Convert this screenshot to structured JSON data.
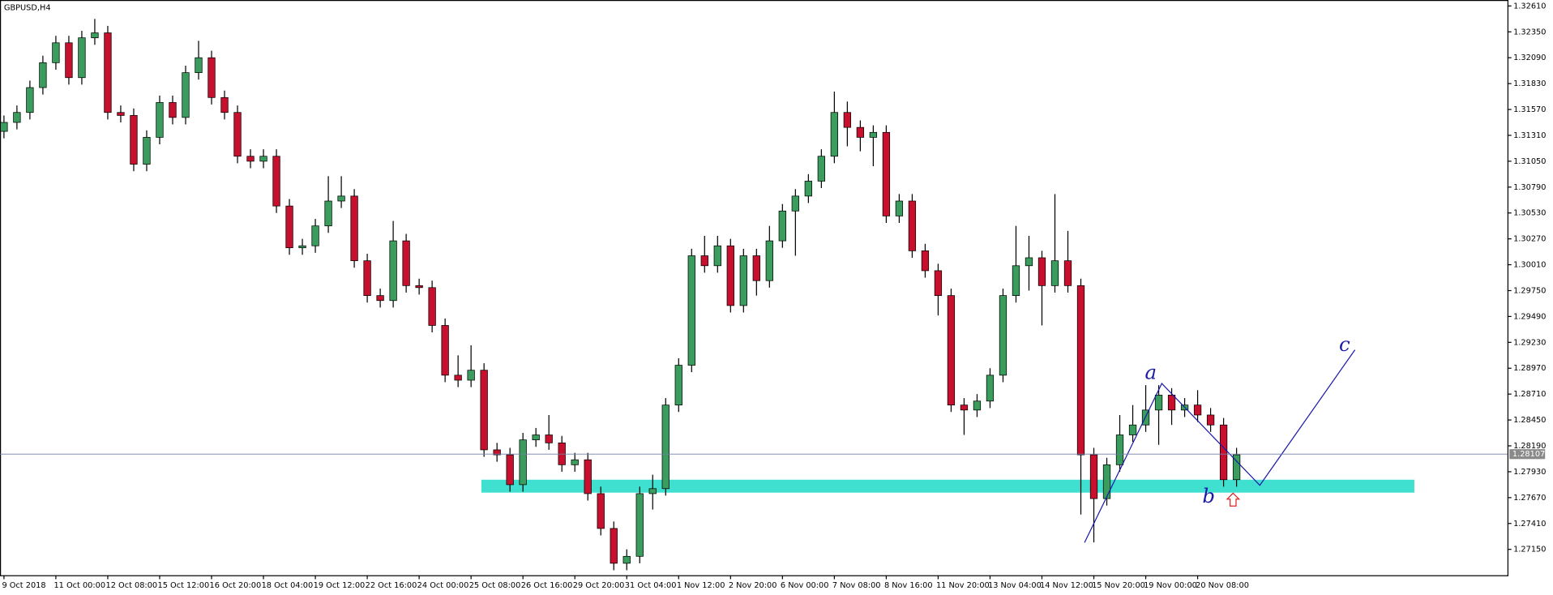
{
  "chart_data": {
    "type": "candlestick",
    "title": "GBPUSD,H4",
    "up_color": "#3a9d5d",
    "down_color": "#c8102e",
    "categories": [
      "9 Oct 2018",
      null,
      null,
      null,
      "11 Oct 00:00",
      null,
      null,
      null,
      "12 Oct 08:00",
      null,
      null,
      null,
      "15 Oct 12:00",
      null,
      null,
      null,
      "16 Oct 20:00",
      null,
      null,
      null,
      "18 Oct 04:00",
      null,
      null,
      null,
      "19 Oct 12:00",
      null,
      null,
      null,
      "22 Oct 16:00",
      null,
      null,
      null,
      "24 Oct 00:00",
      null,
      null,
      null,
      "25 Oct 08:00",
      null,
      null,
      null,
      "26 Oct 16:00",
      null,
      null,
      null,
      "29 Oct 20:00",
      null,
      null,
      null,
      "31 Oct 04:00",
      null,
      null,
      null,
      "1 Nov 12:00",
      null,
      null,
      null,
      "2 Nov 20:00",
      null,
      null,
      null,
      "6 Nov 00:00",
      null,
      null,
      null,
      "7 Nov 08:00",
      null,
      null,
      null,
      "8 Nov 16:00",
      null,
      null,
      null,
      "11 Nov 20:00",
      null,
      null,
      null,
      "13 Nov 04:00",
      null,
      null,
      null,
      "14 Nov 12:00",
      null,
      null,
      null,
      "15 Nov 20:00",
      null,
      null,
      null,
      "19 Nov 00:00",
      null,
      null,
      null,
      "20 Nov 08:00",
      null,
      null,
      null
    ],
    "open": [
      1.3135,
      1.3144,
      1.3154,
      1.3179,
      1.3204,
      1.3224,
      1.3189,
      1.3229,
      1.3234,
      1.3154,
      1.3151,
      1.3102,
      1.3129,
      1.3164,
      1.3149,
      1.3194,
      1.3209,
      1.3169,
      1.3154,
      1.311,
      1.3105,
      1.311,
      1.306,
      1.3018,
      1.302,
      1.304,
      1.3065,
      1.307,
      1.3005,
      1.297,
      1.2965,
      1.3025,
      1.298,
      1.2978,
      1.294,
      1.289,
      1.2885,
      1.2895,
      1.2815,
      1.281,
      1.278,
      1.2825,
      1.283,
      1.2822,
      1.28,
      1.2805,
      1.2771,
      1.2736,
      1.2701,
      1.2708,
      1.2771,
      1.2776,
      1.286,
      1.29,
      1.301,
      1.3,
      1.302,
      1.296,
      1.301,
      1.2985,
      1.3025,
      1.3055,
      1.307,
      1.3085,
      1.311,
      1.3154,
      1.3139,
      1.3129,
      1.3134,
      1.305,
      1.3065,
      1.3015,
      1.2995,
      1.297,
      1.286,
      1.2855,
      1.2864,
      1.289,
      1.297,
      1.3,
      1.3008,
      1.298,
      1.3005,
      1.298,
      1.281,
      1.2766,
      1.28,
      1.283,
      1.284,
      1.2855,
      1.287,
      1.2855,
      1.286,
      1.285,
      1.284,
      1.2785
    ],
    "high": [
      1.3151,
      1.3161,
      1.3186,
      1.3211,
      1.3231,
      1.3231,
      1.3236,
      1.3248,
      1.3241,
      1.3161,
      1.3158,
      1.3136,
      1.3171,
      1.3171,
      1.3201,
      1.3226,
      1.3216,
      1.3176,
      1.3161,
      1.3117,
      1.3117,
      1.3117,
      1.3067,
      1.3027,
      1.3047,
      1.309,
      1.309,
      1.3077,
      1.3012,
      1.2977,
      1.3045,
      1.3032,
      1.2987,
      1.2985,
      1.2947,
      1.291,
      1.292,
      1.2902,
      1.2822,
      1.2817,
      1.2832,
      1.2837,
      1.285,
      1.2829,
      1.2812,
      1.2812,
      1.2778,
      1.2743,
      1.2715,
      1.2778,
      1.279,
      1.2867,
      1.2907,
      1.3017,
      1.303,
      1.303,
      1.3027,
      1.3017,
      1.3017,
      1.304,
      1.3062,
      1.3077,
      1.3092,
      1.3117,
      1.3175,
      1.3165,
      1.3146,
      1.3141,
      1.3141,
      1.3072,
      1.3072,
      1.3022,
      1.3002,
      1.2977,
      1.2867,
      1.2871,
      1.2897,
      1.2977,
      1.304,
      1.303,
      1.3015,
      1.3072,
      1.3035,
      1.2987,
      1.2817,
      1.2807,
      1.285,
      1.286,
      1.288,
      1.288,
      1.2877,
      1.2867,
      1.2875,
      1.2857,
      1.2847,
      1.2817
    ],
    "low": [
      1.3128,
      1.3137,
      1.3147,
      1.3172,
      1.3197,
      1.3182,
      1.3182,
      1.3222,
      1.3147,
      1.3144,
      1.3095,
      1.3095,
      1.3122,
      1.3142,
      1.3142,
      1.3187,
      1.3162,
      1.3147,
      1.3103,
      1.3098,
      1.3098,
      1.3053,
      1.3011,
      1.3011,
      1.3013,
      1.3033,
      1.3058,
      1.2998,
      1.2963,
      1.2958,
      1.2958,
      1.2973,
      1.2971,
      1.2933,
      1.2883,
      1.2878,
      1.2878,
      1.2808,
      1.2803,
      1.2773,
      1.2773,
      1.2818,
      1.2815,
      1.2793,
      1.2793,
      1.2764,
      1.2729,
      1.2694,
      1.2694,
      1.2701,
      1.2755,
      1.2769,
      1.2853,
      1.2893,
      1.2993,
      1.2993,
      1.2953,
      1.2953,
      1.297,
      1.2978,
      1.3018,
      1.301,
      1.3063,
      1.3078,
      1.3103,
      1.312,
      1.3115,
      1.31,
      1.3043,
      1.3043,
      1.3008,
      1.2988,
      1.295,
      1.2853,
      1.283,
      1.2848,
      1.2857,
      1.2883,
      1.2963,
      1.2975,
      1.294,
      1.2973,
      1.2973,
      1.275,
      1.2722,
      1.2759,
      1.2793,
      1.2823,
      1.2833,
      1.282,
      1.284,
      1.2848,
      1.2843,
      1.2833,
      1.2778,
      1.2778
    ],
    "close": [
      1.3144,
      1.3154,
      1.3179,
      1.3204,
      1.3224,
      1.3189,
      1.3229,
      1.3234,
      1.3154,
      1.3151,
      1.3102,
      1.3129,
      1.3164,
      1.3149,
      1.3194,
      1.3209,
      1.3169,
      1.3154,
      1.311,
      1.3105,
      1.311,
      1.306,
      1.3018,
      1.302,
      1.304,
      1.3065,
      1.307,
      1.3005,
      1.297,
      1.2965,
      1.3025,
      1.298,
      1.2978,
      1.294,
      1.289,
      1.2885,
      1.2895,
      1.2815,
      1.281,
      1.278,
      1.2825,
      1.283,
      1.2822,
      1.28,
      1.2805,
      1.2771,
      1.2736,
      1.2701,
      1.2708,
      1.2771,
      1.2776,
      1.286,
      1.29,
      1.301,
      1.3,
      1.302,
      1.296,
      1.301,
      1.2985,
      1.3025,
      1.3055,
      1.307,
      1.3085,
      1.311,
      1.3154,
      1.3139,
      1.3129,
      1.3134,
      1.305,
      1.3065,
      1.3015,
      1.2995,
      1.297,
      1.286,
      1.2855,
      1.2864,
      1.289,
      1.297,
      1.3,
      1.3008,
      1.298,
      1.3005,
      1.298,
      1.281,
      1.2766,
      1.28,
      1.283,
      1.284,
      1.2855,
      1.287,
      1.2855,
      1.286,
      1.285,
      1.284,
      1.2785,
      1.281
    ],
    "ylim": [
      1.2689,
      1.3267
    ],
    "yticks": [
      {
        "value": 1.3261,
        "label": "1.32610"
      },
      {
        "value": 1.3235,
        "label": "1.32350"
      },
      {
        "value": 1.3209,
        "label": "1.32090"
      },
      {
        "value": 1.3183,
        "label": "1.31830"
      },
      {
        "value": 1.3157,
        "label": "1.31570"
      },
      {
        "value": 1.3131,
        "label": "1.31310"
      },
      {
        "value": 1.3105,
        "label": "1.31050"
      },
      {
        "value": 1.3079,
        "label": "1.30790"
      },
      {
        "value": 1.3053,
        "label": "1.30530"
      },
      {
        "value": 1.3027,
        "label": "1.30270"
      },
      {
        "value": 1.3001,
        "label": "1.30010"
      },
      {
        "value": 1.2975,
        "label": "1.29750"
      },
      {
        "value": 1.2949,
        "label": "1.29490"
      },
      {
        "value": 1.2923,
        "label": "1.29230"
      },
      {
        "value": 1.2897,
        "label": "1.28970"
      },
      {
        "value": 1.2871,
        "label": "1.28710"
      },
      {
        "value": 1.2845,
        "label": "1.28450"
      },
      {
        "value": 1.2819,
        "label": "1.28190"
      },
      {
        "value": 1.2793,
        "label": "1.27930"
      },
      {
        "value": 1.2767,
        "label": "1.27670"
      },
      {
        "value": 1.2741,
        "label": "1.27410"
      },
      {
        "value": 1.2715,
        "label": "1.27150"
      }
    ],
    "current_price": 1.28107,
    "zone": [
      1.2772,
      1.2785
    ],
    "annotations": [
      "a",
      "b",
      "c"
    ]
  }
}
